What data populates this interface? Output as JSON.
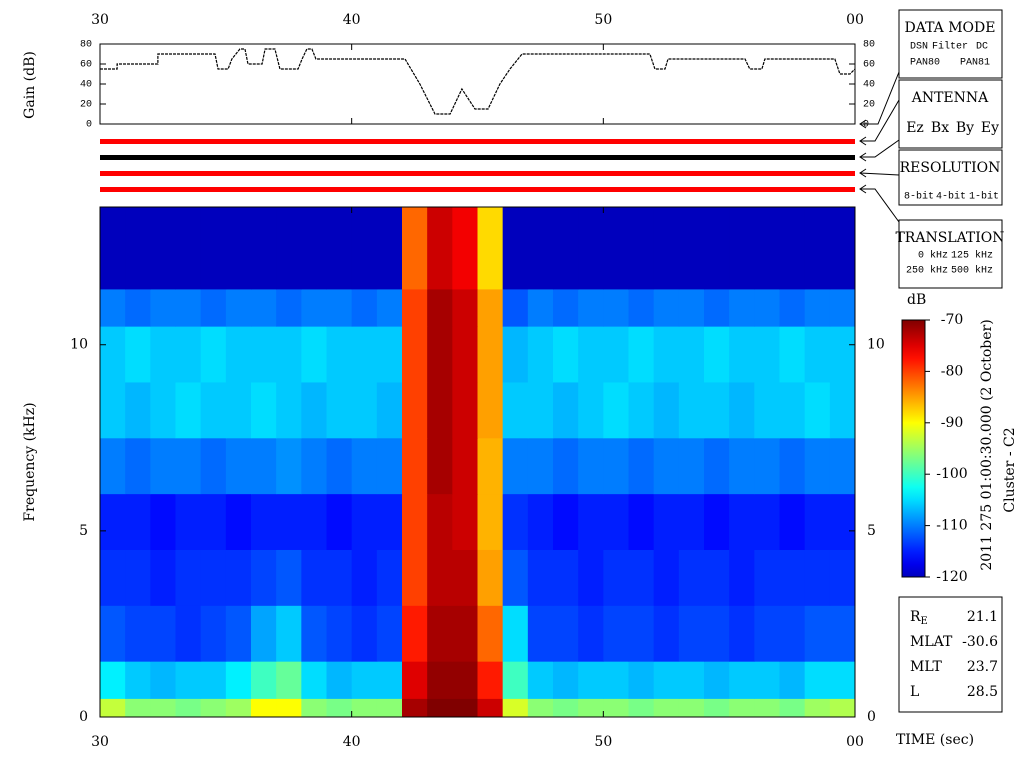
{
  "chart_data": [
    {
      "type": "line",
      "ylabel": "Gain (dB)",
      "x": [
        30,
        30.68,
        30.68,
        32.3,
        32.3,
        34.57,
        34.69,
        35.09,
        35.24,
        35.56,
        35.76,
        35.88,
        36.44,
        36.56,
        36.95,
        37.15,
        37.87,
        38.03,
        38.22,
        38.42,
        38.58,
        42.12,
        42.71,
        43.31,
        43.91,
        44.38,
        44.9,
        45.42,
        45.89,
        46.29,
        46.77,
        51.85,
        52.05,
        52.45,
        52.57,
        55.63,
        55.82,
        56.3,
        56.42,
        59.2,
        59.4,
        59.8,
        60
      ],
      "values": [
        55,
        55,
        60,
        60,
        70,
        70,
        55,
        55,
        65,
        75,
        75,
        60,
        60,
        75,
        75,
        55,
        55,
        65,
        75,
        75,
        65,
        65,
        40,
        10,
        10,
        35,
        15,
        15,
        40,
        55,
        70,
        70,
        55,
        55,
        65,
        65,
        55,
        55,
        65,
        65,
        50,
        50,
        55
      ],
      "color": "#000000",
      "xlim": [
        30,
        60
      ],
      "xticks": [
        30,
        40,
        50,
        {
          "value": 60,
          "label": "00"
        }
      ],
      "ylim": [
        0,
        80
      ],
      "yticks": [
        0,
        20,
        40,
        60,
        80
      ]
    },
    {
      "type": "heatmap",
      "xlabel": "TIME (sec)",
      "ylabel": "Frequency (kHz)",
      "x_edges": [
        30,
        31,
        32,
        33,
        34,
        35,
        36,
        37,
        38,
        39,
        40,
        41,
        42,
        43,
        44,
        45,
        46,
        47,
        48,
        49,
        50,
        51,
        52,
        53,
        54,
        55,
        56,
        57,
        58,
        59,
        60
      ],
      "y_edges": [
        0,
        0.5,
        1.5,
        3,
        4.5,
        6,
        7.5,
        9,
        10.5,
        11.5,
        13.7
      ],
      "z": [
        [
          -93,
          -96,
          -96,
          -97,
          -96,
          -95,
          -90,
          -90,
          -96,
          -97,
          -96,
          -96,
          -72,
          -70,
          -70,
          -74,
          -92,
          -96,
          -97,
          -96,
          -96,
          -97,
          -96,
          -96,
          -97,
          -96,
          -96,
          -97,
          -95,
          -94
        ],
        [
          -104,
          -106,
          -107,
          -106,
          -106,
          -104,
          -100,
          -98,
          -105,
          -107,
          -106,
          -106,
          -75,
          -71,
          -71,
          -78,
          -100,
          -106,
          -107,
          -106,
          -106,
          -107,
          -106,
          -106,
          -107,
          -106,
          -106,
          -107,
          -105,
          -105
        ],
        [
          -112,
          -113,
          -113,
          -114,
          -113,
          -112,
          -108,
          -106,
          -112,
          -113,
          -114,
          -113,
          -78,
          -72,
          -72,
          -82,
          -105,
          -113,
          -113,
          -114,
          -113,
          -113,
          -114,
          -113,
          -113,
          -114,
          -113,
          -113,
          -112,
          -112
        ],
        [
          -114,
          -114,
          -115,
          -114,
          -114,
          -114,
          -113,
          -112,
          -114,
          -114,
          -115,
          -114,
          -80,
          -73,
          -73,
          -85,
          -112,
          -114,
          -114,
          -115,
          -114,
          -114,
          -115,
          -114,
          -114,
          -115,
          -114,
          -114,
          -114,
          -114
        ],
        [
          -115,
          -115,
          -116,
          -115,
          -115,
          -116,
          -115,
          -115,
          -115,
          -116,
          -115,
          -115,
          -80,
          -73,
          -74,
          -86,
          -114,
          -115,
          -116,
          -115,
          -115,
          -116,
          -115,
          -115,
          -116,
          -115,
          -115,
          -116,
          -115,
          -115
        ],
        [
          -110,
          -111,
          -110,
          -110,
          -111,
          -110,
          -110,
          -109,
          -110,
          -111,
          -110,
          -110,
          -80,
          -72,
          -74,
          -86,
          -110,
          -110,
          -111,
          -110,
          -110,
          -111,
          -110,
          -110,
          -111,
          -110,
          -110,
          -111,
          -110,
          -110
        ],
        [
          -106,
          -107,
          -106,
          -105,
          -106,
          -106,
          -105,
          -106,
          -107,
          -106,
          -106,
          -107,
          -80,
          -72,
          -74,
          -85,
          -106,
          -106,
          -107,
          -106,
          -105,
          -106,
          -107,
          -106,
          -106,
          -107,
          -106,
          -106,
          -105,
          -106
        ],
        [
          -106,
          -105,
          -106,
          -106,
          -105,
          -106,
          -106,
          -106,
          -105,
          -106,
          -106,
          -106,
          -80,
          -72,
          -74,
          -85,
          -107,
          -106,
          -105,
          -106,
          -106,
          -105,
          -106,
          -106,
          -105,
          -106,
          -106,
          -105,
          -106,
          -106
        ],
        [
          -110,
          -111,
          -110,
          -110,
          -111,
          -110,
          -110,
          -111,
          -110,
          -110,
          -111,
          -110,
          -80,
          -72,
          -74,
          -85,
          -112,
          -110,
          -111,
          -110,
          -110,
          -111,
          -110,
          -110,
          -111,
          -110,
          -110,
          -111,
          -110,
          -110
        ],
        [
          -120,
          -120,
          -120,
          -120,
          -120,
          -120,
          -120,
          -120,
          -120,
          -120,
          -120,
          -120,
          -82,
          -74,
          -76,
          -88,
          -120,
          -120,
          -120,
          -120,
          -120,
          -120,
          -120,
          -120,
          -120,
          -120,
          -120,
          -120,
          -120,
          -120
        ]
      ],
      "xlim": [
        30,
        60
      ],
      "xticks": [
        30,
        40,
        50,
        {
          "value": 60,
          "label": "00"
        }
      ],
      "ylim": [
        0,
        13.7
      ],
      "yticks": [
        0,
        5,
        10
      ],
      "zlabel": "dB",
      "zlim": [
        -120,
        -70
      ],
      "zticks": [
        -70,
        -80,
        -90,
        -100,
        -110,
        -120
      ]
    }
  ],
  "data_mode": {
    "title": "DATA MODE",
    "items": [
      {
        "text": "DSN",
        "color": "#e00000"
      },
      {
        "text": "Filter",
        "color": "#00c000"
      },
      {
        "text": "DC",
        "color": "#0000e0"
      },
      {
        "text": "PAN80",
        "color": "#000000"
      },
      {
        "text": "PAN81",
        "color": "#00c8c8"
      }
    ]
  },
  "antenna": {
    "title": "ANTENNA",
    "items": [
      {
        "text": "Ez",
        "color": "#e00000"
      },
      {
        "text": "Bx",
        "color": "#00c000"
      },
      {
        "text": "By",
        "color": "#0000e0"
      },
      {
        "text": "Ey",
        "color": "#000000"
      }
    ]
  },
  "resolution": {
    "title": "RESOLUTION",
    "items": [
      {
        "text": "8-bit",
        "color": "#e00000"
      },
      {
        "text": "4-bit",
        "color": "#00c000"
      },
      {
        "text": "1-bit",
        "color": "#0000e0"
      }
    ]
  },
  "translation": {
    "title": "TRANSLATION",
    "items": [
      {
        "text": "0 kHz",
        "color": "#e00000"
      },
      {
        "text": "125 kHz",
        "color": "#00c000"
      },
      {
        "text": "250 kHz",
        "color": "#0000e0"
      },
      {
        "text": "500 kHz",
        "color": "#000000"
      }
    ]
  },
  "date_label": "2011 275 01:00:30.000 (2 October)",
  "spacecraft": "Cluster - C2",
  "ephemeris": [
    {
      "label": "R",
      "sub": "E",
      "value": "21.1"
    },
    {
      "label": "MLAT",
      "value": "-30.6"
    },
    {
      "label": "MLT",
      "value": "23.7"
    },
    {
      "label": "L",
      "value": "28.5"
    }
  ]
}
